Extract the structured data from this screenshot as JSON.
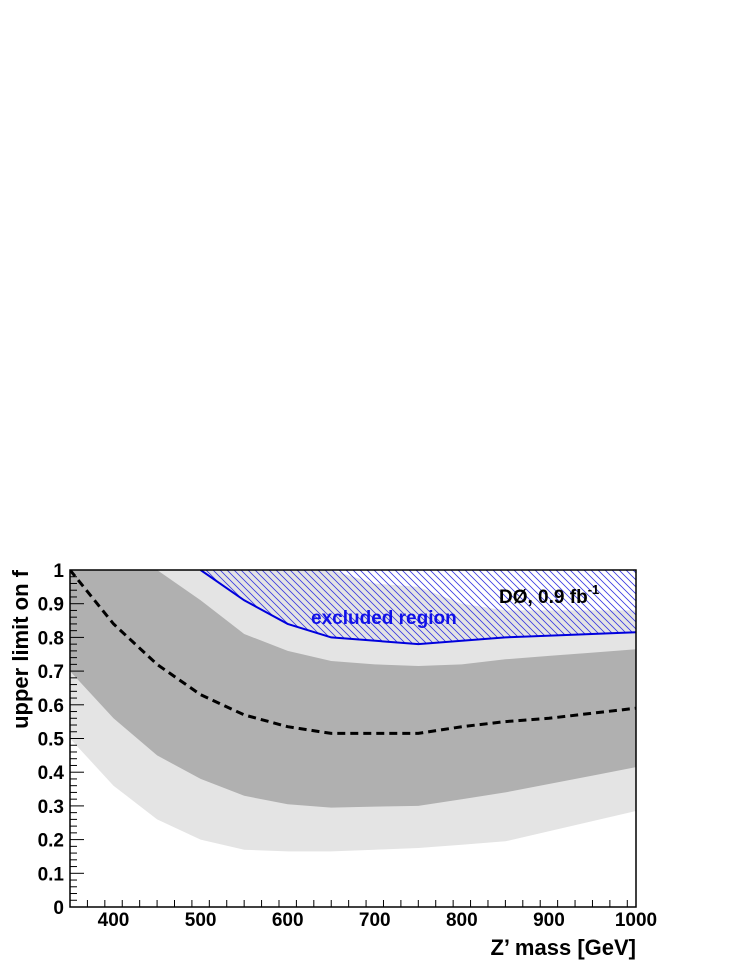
{
  "chart_data": {
    "type": "line",
    "xlabel": "Z’ mass [GeV]",
    "ylabel": "upper limit on f",
    "xlim": [
      350,
      1000
    ],
    "ylim": [
      0,
      1
    ],
    "x_ticks": [
      400,
      500,
      600,
      700,
      800,
      900,
      1000
    ],
    "y_ticks": [
      0,
      0.1,
      0.2,
      0.3,
      0.4,
      0.5,
      0.6,
      0.7,
      0.8,
      0.9,
      1
    ],
    "x_tick_labels": [
      "400",
      "500",
      "600",
      "700",
      "800",
      "900",
      "1000"
    ],
    "y_tick_labels": [
      "0",
      "0.1",
      "0.2",
      "0.3",
      "0.4",
      "0.5",
      "0.6",
      "0.7",
      "0.8",
      "0.9",
      "1"
    ],
    "series": [
      {
        "style": "dashed",
        "color": "#000000",
        "x": [
          350,
          400,
          450,
          500,
          550,
          600,
          650,
          700,
          750,
          800,
          850,
          900,
          950,
          1000
        ],
        "y": [
          1.0,
          0.84,
          0.72,
          0.63,
          0.57,
          0.535,
          0.515,
          0.515,
          0.515,
          0.535,
          0.55,
          0.56,
          0.575,
          0.59
        ]
      },
      {
        "style": "solid",
        "color": "#0000dd",
        "x": [
          500,
          550,
          600,
          650,
          750,
          850,
          1000
        ],
        "y": [
          1.0,
          0.91,
          0.84,
          0.8,
          0.78,
          0.8,
          0.815
        ]
      }
    ],
    "bands": [
      {
        "color": "#e4e4e4",
        "x": [
          350,
          400,
          450,
          500,
          550,
          600,
          650,
          700,
          750,
          800,
          850,
          900,
          950,
          1000
        ],
        "lower": [
          0.5,
          0.36,
          0.26,
          0.2,
          0.17,
          0.165,
          0.165,
          0.17,
          0.175,
          0.185,
          0.195,
          0.225,
          0.255,
          0.285
        ],
        "upper": [
          1.0,
          1.0,
          1.0,
          1.0,
          1.0,
          1.0,
          1.0,
          0.96,
          0.95,
          0.9,
          0.88,
          0.88,
          0.88,
          0.88
        ]
      },
      {
        "color": "#b0b0b0",
        "x": [
          350,
          400,
          450,
          500,
          550,
          600,
          650,
          700,
          750,
          800,
          850,
          900,
          950,
          1000
        ],
        "lower": [
          0.7,
          0.56,
          0.45,
          0.38,
          0.33,
          0.305,
          0.295,
          0.298,
          0.3,
          0.32,
          0.34,
          0.365,
          0.39,
          0.415
        ],
        "upper": [
          1.0,
          1.0,
          1.0,
          0.91,
          0.81,
          0.76,
          0.73,
          0.72,
          0.715,
          0.72,
          0.735,
          0.745,
          0.755,
          0.765
        ]
      }
    ],
    "excluded_region": {
      "color": "#0000dd",
      "boundary_x": [
        500,
        550,
        600,
        650,
        750,
        850,
        1000
      ],
      "boundary_y": [
        1.0,
        0.91,
        0.84,
        0.8,
        0.78,
        0.8,
        0.815
      ],
      "label": "excluded region"
    },
    "annotation": {
      "main": "DØ, 0.9 fb",
      "superscript": "-1"
    },
    "grid": false,
    "legend": "none"
  }
}
